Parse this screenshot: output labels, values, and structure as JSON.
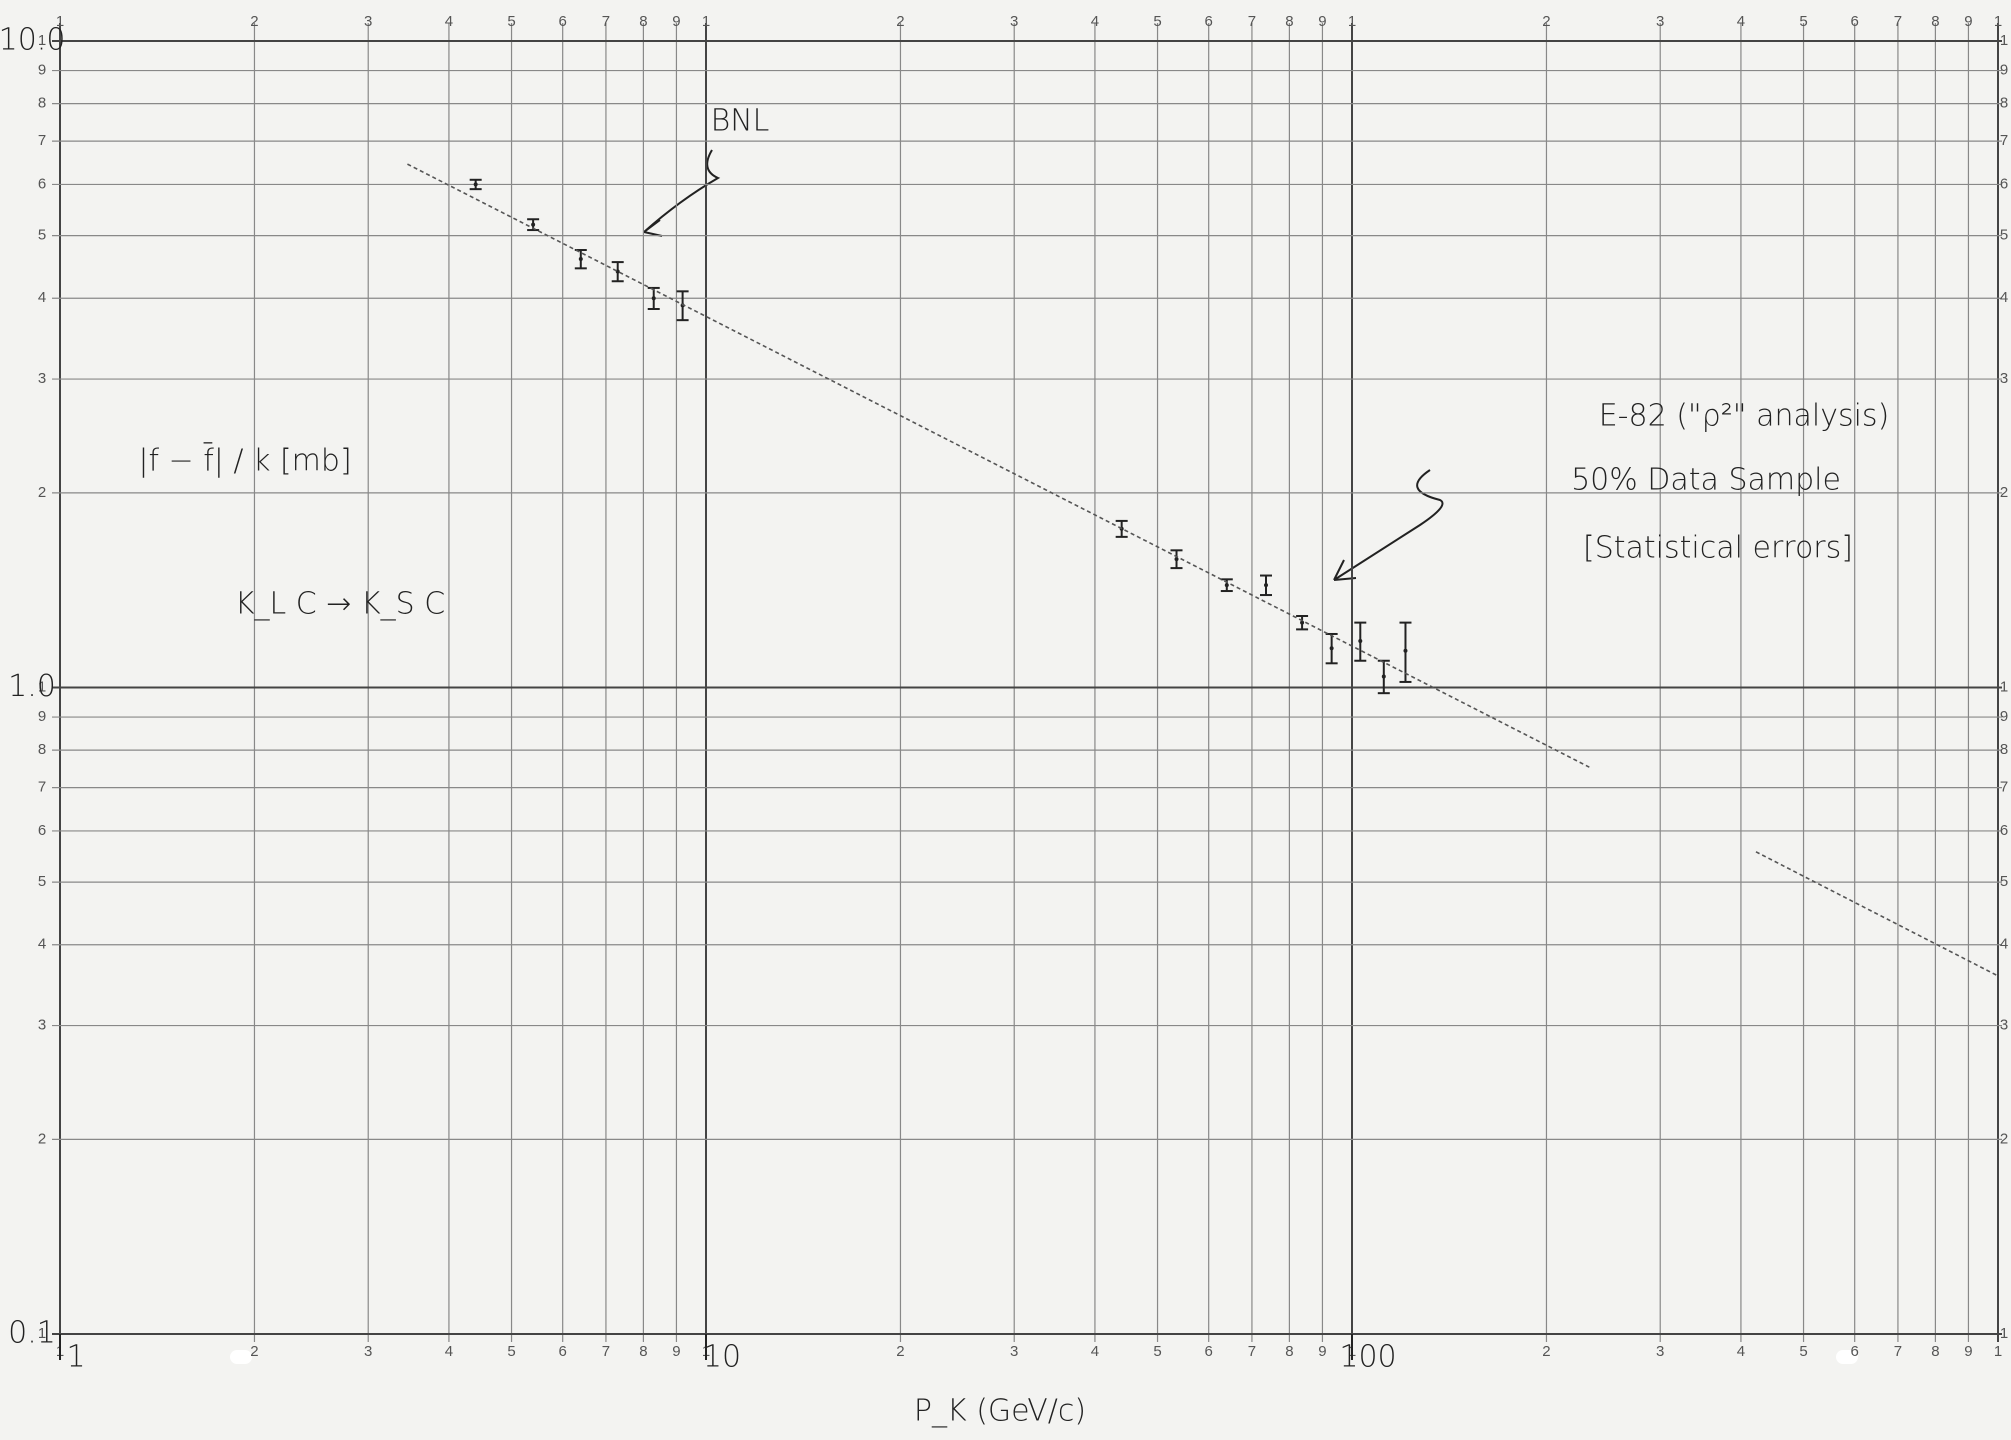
{
  "chart_data": {
    "type": "scatter",
    "log_x": true,
    "log_y": true,
    "xlim": [
      1,
      1000
    ],
    "ylim": [
      0.1,
      10
    ],
    "xticks": [
      1,
      10,
      100
    ],
    "yticks": [
      {
        "value": 10,
        "label": "10.0"
      },
      {
        "value": 1,
        "label": "1.0"
      },
      {
        "value": 0.1,
        "label": "0.1"
      }
    ],
    "paper_xticks": [
      1,
      2,
      3,
      4,
      5,
      6,
      7,
      8,
      9,
      {
        "value": 10,
        "label": "1"
      },
      {
        "value": 20,
        "label": "2"
      },
      {
        "value": 30,
        "label": "3"
      },
      {
        "value": 40,
        "label": "4"
      },
      {
        "value": 50,
        "label": "5"
      },
      {
        "value": 60,
        "label": "6"
      },
      {
        "value": 70,
        "label": "7"
      },
      {
        "value": 80,
        "label": "8"
      },
      {
        "value": 90,
        "label": "9"
      },
      {
        "value": 100,
        "label": "1"
      },
      {
        "value": 200,
        "label": "2"
      },
      {
        "value": 300,
        "label": "3"
      },
      {
        "value": 400,
        "label": "4"
      },
      {
        "value": 500,
        "label": "5"
      },
      {
        "value": 600,
        "label": "6"
      },
      {
        "value": 700,
        "label": "7"
      },
      {
        "value": 800,
        "label": "8"
      },
      {
        "value": 900,
        "label": "9"
      },
      {
        "value": 1000,
        "label": "1"
      }
    ],
    "paper_yticks": [
      {
        "value": 0.1,
        "label": "1"
      },
      {
        "value": 0.2,
        "label": "2"
      },
      {
        "value": 0.3,
        "label": "3"
      },
      {
        "value": 0.4,
        "label": "4"
      },
      {
        "value": 0.5,
        "label": "5"
      },
      {
        "value": 0.6,
        "label": "6"
      },
      {
        "value": 0.7,
        "label": "7"
      },
      {
        "value": 0.8,
        "label": "8"
      },
      {
        "value": 0.9,
        "label": "9"
      },
      1,
      2,
      3,
      4,
      5,
      6,
      7,
      8,
      9,
      {
        "value": 10,
        "label": "1"
      }
    ],
    "x_label": "P_K (GeV/c)",
    "y_label": "|f − f̄| / k [mb]",
    "annotations": [
      "BNL",
      "E-82 (\"ρ²\" analysis)",
      "50% Data Sample",
      "[Statistical errors]",
      "K_L C → K_S C"
    ],
    "series": [
      {
        "color": "#222222",
        "x": [
          4.4,
          5.4,
          6.4,
          7.3,
          8.3,
          9.2
        ],
        "values": [
          6.0,
          5.2,
          4.6,
          4.4,
          4.0,
          3.9
        ],
        "errors": [
          0.1,
          0.1,
          0.15,
          0.15,
          0.15,
          0.2
        ]
      },
      {
        "color": "#222222",
        "x": [
          44,
          53.5,
          64,
          73.6,
          83.7,
          93,
          103,
          112,
          121
        ],
        "values": [
          1.76,
          1.58,
          1.44,
          1.44,
          1.26,
          1.15,
          1.18,
          1.04,
          1.14
        ],
        "errors": [
          0.05,
          0.05,
          0.03,
          0.05,
          0.03,
          0.06,
          0.08,
          0.06,
          0.12
        ]
      },
      {
        "type": "line",
        "color": "#555555",
        "x": [
          3.45,
          233
        ],
        "values": [
          6.45,
          0.753
        ]
      },
      {
        "type": "line",
        "color": "#555555",
        "x": [
          422,
          1000
        ],
        "values": [
          0.557,
          0.358
        ]
      }
    ]
  }
}
